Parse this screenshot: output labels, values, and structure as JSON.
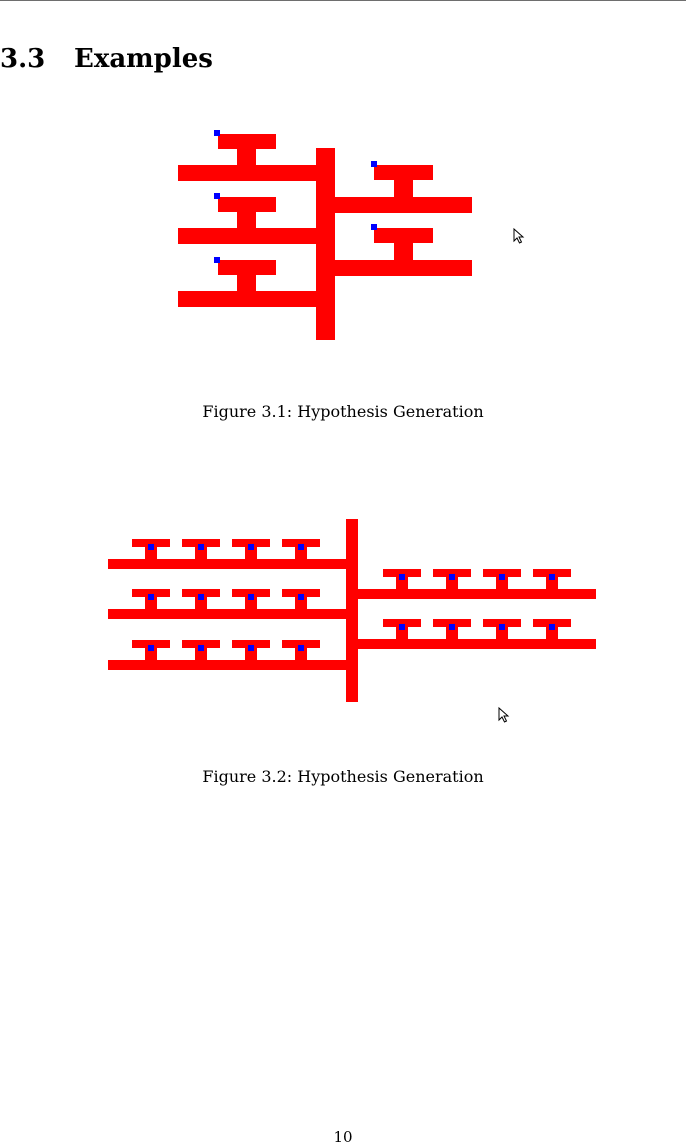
{
  "section": {
    "number": "3.3",
    "title": "Examples"
  },
  "figures": [
    {
      "caption": "Figure 3.1: Hypothesis Generation"
    },
    {
      "caption": "Figure 3.2: Hypothesis Generation"
    }
  ],
  "page_number": "10",
  "colors": {
    "structure": "#ff0000",
    "marker": "#0000ff",
    "cursor": "#000000"
  }
}
